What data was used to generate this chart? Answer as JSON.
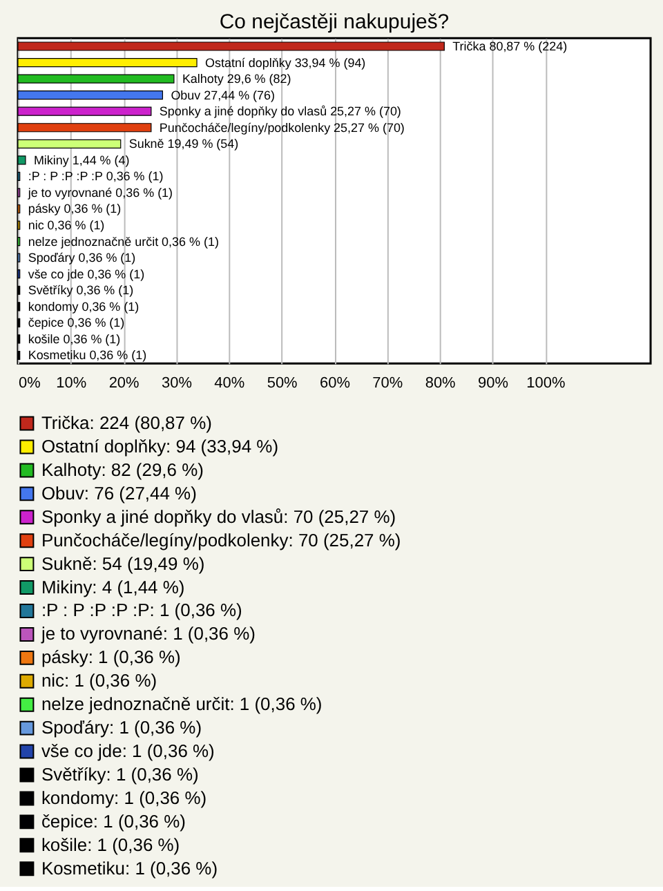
{
  "chart_data": {
    "type": "bar",
    "orientation": "horizontal",
    "title": "Co nejčastěji nakupuješ?",
    "categories": [
      "Trička",
      "Ostatní doplňky",
      "Kalhoty",
      "Obuv",
      "Sponky a jiné dopňky do vlasů",
      "Punčocháče/legíny/podkolenky",
      "Sukně",
      "Mikiny",
      ":P : P :P :P :P",
      "je to vyrovnané",
      "pásky",
      "nic",
      "nelze jednoznačně určit",
      "Spoďáry",
      "vše co jde",
      "Světříky",
      "kondomy",
      "čepice",
      "košile",
      "Kosmetiku"
    ],
    "series": [
      {
        "name": "Trička: 224 (80,87 %)",
        "color": "#c0281c",
        "values": [
          80.87,
          null,
          null,
          null,
          null,
          null,
          null,
          null,
          null,
          null,
          null,
          null,
          null,
          null,
          null,
          null,
          null,
          null,
          null,
          null
        ],
        "value_labels": [
          "80,87 % (224)",
          null,
          null,
          null,
          null,
          null,
          null,
          null,
          null,
          null,
          null,
          null,
          null,
          null,
          null,
          null,
          null,
          null,
          null,
          null
        ]
      },
      {
        "name": "Ostatní doplňky: 94 (33,94 %)",
        "color": "#ffee00",
        "values": [
          null,
          33.94,
          null,
          null,
          null,
          null,
          null,
          null,
          null,
          null,
          null,
          null,
          null,
          null,
          null,
          null,
          null,
          null,
          null,
          null
        ],
        "value_labels": [
          null,
          "33,94 % (94)",
          null,
          null,
          null,
          null,
          null,
          null,
          null,
          null,
          null,
          null,
          null,
          null,
          null,
          null,
          null,
          null,
          null,
          null
        ]
      },
      {
        "name": "Kalhoty: 82 (29,6 %)",
        "color": "#22bb22",
        "values": [
          null,
          null,
          29.6,
          null,
          null,
          null,
          null,
          null,
          null,
          null,
          null,
          null,
          null,
          null,
          null,
          null,
          null,
          null,
          null,
          null
        ],
        "value_labels": [
          null,
          null,
          "29,6 % (82)",
          null,
          null,
          null,
          null,
          null,
          null,
          null,
          null,
          null,
          null,
          null,
          null,
          null,
          null,
          null,
          null,
          null
        ]
      },
      {
        "name": "Obuv: 76 (27,44 %)",
        "color": "#4477ee",
        "values": [
          null,
          null,
          null,
          27.44,
          null,
          null,
          null,
          null,
          null,
          null,
          null,
          null,
          null,
          null,
          null,
          null,
          null,
          null,
          null,
          null
        ],
        "value_labels": [
          null,
          null,
          null,
          "27,44 % (76)",
          null,
          null,
          null,
          null,
          null,
          null,
          null,
          null,
          null,
          null,
          null,
          null,
          null,
          null,
          null,
          null
        ]
      },
      {
        "name": "Sponky a jiné dopňky do vlasů: 70 (25,27 %)",
        "color": "#cc22cc",
        "values": [
          null,
          null,
          null,
          null,
          25.27,
          null,
          null,
          null,
          null,
          null,
          null,
          null,
          null,
          null,
          null,
          null,
          null,
          null,
          null,
          null
        ],
        "value_labels": [
          null,
          null,
          null,
          null,
          "25,27 % (70)",
          null,
          null,
          null,
          null,
          null,
          null,
          null,
          null,
          null,
          null,
          null,
          null,
          null,
          null,
          null
        ]
      },
      {
        "name": "Punčocháče/legíny/podkolenky: 70 (25,27 %)",
        "color": "#e04010",
        "values": [
          null,
          null,
          null,
          null,
          null,
          25.27,
          null,
          null,
          null,
          null,
          null,
          null,
          null,
          null,
          null,
          null,
          null,
          null,
          null,
          null
        ],
        "value_labels": [
          null,
          null,
          null,
          null,
          null,
          "25,27 % (70)",
          null,
          null,
          null,
          null,
          null,
          null,
          null,
          null,
          null,
          null,
          null,
          null,
          null,
          null
        ]
      },
      {
        "name": "Sukně: 54 (19,49 %)",
        "color": "#ccff77",
        "values": [
          null,
          null,
          null,
          null,
          null,
          null,
          19.49,
          null,
          null,
          null,
          null,
          null,
          null,
          null,
          null,
          null,
          null,
          null,
          null,
          null
        ],
        "value_labels": [
          null,
          null,
          null,
          null,
          null,
          null,
          "19,49 % (54)",
          null,
          null,
          null,
          null,
          null,
          null,
          null,
          null,
          null,
          null,
          null,
          null,
          null
        ]
      },
      {
        "name": "Mikiny: 4 (1,44 %)",
        "color": "#119966",
        "values": [
          null,
          null,
          null,
          null,
          null,
          null,
          null,
          1.44,
          null,
          null,
          null,
          null,
          null,
          null,
          null,
          null,
          null,
          null,
          null,
          null
        ],
        "value_labels": [
          null,
          null,
          null,
          null,
          null,
          null,
          null,
          "1,44 % (4)",
          null,
          null,
          null,
          null,
          null,
          null,
          null,
          null,
          null,
          null,
          null,
          null
        ]
      },
      {
        "name": ":P : P :P :P :P: 1 (0,36 %)",
        "color": "#227799",
        "values": [
          null,
          null,
          null,
          null,
          null,
          null,
          null,
          null,
          0.36,
          null,
          null,
          null,
          null,
          null,
          null,
          null,
          null,
          null,
          null,
          null
        ],
        "value_labels": [
          null,
          null,
          null,
          null,
          null,
          null,
          null,
          null,
          "0,36 % (1)",
          null,
          null,
          null,
          null,
          null,
          null,
          null,
          null,
          null,
          null,
          null
        ]
      },
      {
        "name": "je to vyrovnané: 1 (0,36 %)",
        "color": "#bb55bb",
        "values": [
          null,
          null,
          null,
          null,
          null,
          null,
          null,
          null,
          null,
          0.36,
          null,
          null,
          null,
          null,
          null,
          null,
          null,
          null,
          null,
          null
        ],
        "value_labels": [
          null,
          null,
          null,
          null,
          null,
          null,
          null,
          null,
          null,
          "0,36 % (1)",
          null,
          null,
          null,
          null,
          null,
          null,
          null,
          null,
          null,
          null
        ]
      },
      {
        "name": "pásky: 1 (0,36 %)",
        "color": "#ee7711",
        "values": [
          null,
          null,
          null,
          null,
          null,
          null,
          null,
          null,
          null,
          null,
          0.36,
          null,
          null,
          null,
          null,
          null,
          null,
          null,
          null,
          null
        ],
        "value_labels": [
          null,
          null,
          null,
          null,
          null,
          null,
          null,
          null,
          null,
          null,
          "0,36 % (1)",
          null,
          null,
          null,
          null,
          null,
          null,
          null,
          null,
          null
        ]
      },
      {
        "name": "nic: 1 (0,36 %)",
        "color": "#ddaa00",
        "values": [
          null,
          null,
          null,
          null,
          null,
          null,
          null,
          null,
          null,
          null,
          null,
          0.36,
          null,
          null,
          null,
          null,
          null,
          null,
          null,
          null
        ],
        "value_labels": [
          null,
          null,
          null,
          null,
          null,
          null,
          null,
          null,
          null,
          null,
          null,
          "0,36 % (1)",
          null,
          null,
          null,
          null,
          null,
          null,
          null,
          null
        ]
      },
      {
        "name": "nelze jednoznačně určit: 1 (0,36 %)",
        "color": "#44ee44",
        "values": [
          null,
          null,
          null,
          null,
          null,
          null,
          null,
          null,
          null,
          null,
          null,
          null,
          0.36,
          null,
          null,
          null,
          null,
          null,
          null,
          null
        ],
        "value_labels": [
          null,
          null,
          null,
          null,
          null,
          null,
          null,
          null,
          null,
          null,
          null,
          null,
          "0,36 % (1)",
          null,
          null,
          null,
          null,
          null,
          null,
          null
        ]
      },
      {
        "name": "Spoďáry: 1 (0,36 %)",
        "color": "#6699dd",
        "values": [
          null,
          null,
          null,
          null,
          null,
          null,
          null,
          null,
          null,
          null,
          null,
          null,
          null,
          0.36,
          null,
          null,
          null,
          null,
          null,
          null
        ],
        "value_labels": [
          null,
          null,
          null,
          null,
          null,
          null,
          null,
          null,
          null,
          null,
          null,
          null,
          null,
          "0,36 % (1)",
          null,
          null,
          null,
          null,
          null,
          null
        ]
      },
      {
        "name": "vše co jde: 1 (0,36 %)",
        "color": "#2244aa",
        "values": [
          null,
          null,
          null,
          null,
          null,
          null,
          null,
          null,
          null,
          null,
          null,
          null,
          null,
          null,
          0.36,
          null,
          null,
          null,
          null,
          null
        ],
        "value_labels": [
          null,
          null,
          null,
          null,
          null,
          null,
          null,
          null,
          null,
          null,
          null,
          null,
          null,
          null,
          "0,36 % (1)",
          null,
          null,
          null,
          null,
          null
        ]
      },
      {
        "name": "Světříky: 1 (0,36 %)",
        "color": "#000000",
        "values": [
          null,
          null,
          null,
          null,
          null,
          null,
          null,
          null,
          null,
          null,
          null,
          null,
          null,
          null,
          null,
          0.36,
          null,
          null,
          null,
          null
        ],
        "value_labels": [
          null,
          null,
          null,
          null,
          null,
          null,
          null,
          null,
          null,
          null,
          null,
          null,
          null,
          null,
          null,
          "0,36 % (1)",
          null,
          null,
          null,
          null
        ]
      },
      {
        "name": "kondomy: 1 (0,36 %)",
        "color": "#000001",
        "values": [
          null,
          null,
          null,
          null,
          null,
          null,
          null,
          null,
          null,
          null,
          null,
          null,
          null,
          null,
          null,
          null,
          0.36,
          null,
          null,
          null
        ],
        "value_labels": [
          null,
          null,
          null,
          null,
          null,
          null,
          null,
          null,
          null,
          null,
          null,
          null,
          null,
          null,
          null,
          null,
          "0,36 % (1)",
          null,
          null,
          null
        ]
      },
      {
        "name": "čepice: 1 (0,36 %)",
        "color": "#000002",
        "values": [
          null,
          null,
          null,
          null,
          null,
          null,
          null,
          null,
          null,
          null,
          null,
          null,
          null,
          null,
          null,
          null,
          null,
          0.36,
          null,
          null
        ],
        "value_labels": [
          null,
          null,
          null,
          null,
          null,
          null,
          null,
          null,
          null,
          null,
          null,
          null,
          null,
          null,
          null,
          null,
          null,
          "0,36 % (1)",
          null,
          null
        ]
      },
      {
        "name": "košile: 1 (0,36 %)",
        "color": "#010101",
        "values": [
          null,
          null,
          null,
          null,
          null,
          null,
          null,
          null,
          null,
          null,
          null,
          null,
          null,
          null,
          null,
          null,
          null,
          null,
          0.36,
          null
        ],
        "value_labels": [
          null,
          null,
          null,
          null,
          null,
          null,
          null,
          null,
          null,
          null,
          null,
          null,
          null,
          null,
          null,
          null,
          null,
          null,
          "0,36 % (1)",
          null
        ]
      },
      {
        "name": "Kosmetiku: 1 (0,36 %)",
        "color": "#020202",
        "values": [
          null,
          null,
          null,
          null,
          null,
          null,
          null,
          null,
          null,
          null,
          null,
          null,
          null,
          null,
          null,
          null,
          null,
          null,
          null,
          0.36
        ],
        "value_labels": [
          null,
          null,
          null,
          null,
          null,
          null,
          null,
          null,
          null,
          null,
          null,
          null,
          null,
          null,
          null,
          null,
          null,
          null,
          null,
          "0,36 % (1)"
        ]
      }
    ],
    "xlim": [
      0,
      120
    ],
    "xticks": [
      {
        "value": 0,
        "label": "0%"
      },
      {
        "value": 10,
        "label": "10%"
      },
      {
        "value": 20,
        "label": "20%"
      },
      {
        "value": 30,
        "label": "30%"
      },
      {
        "value": 40,
        "label": "40%"
      },
      {
        "value": 50,
        "label": "50%"
      },
      {
        "value": 60,
        "label": "60%"
      },
      {
        "value": 70,
        "label": "70%"
      },
      {
        "value": 80,
        "label": "80%"
      },
      {
        "value": 90,
        "label": "90%"
      },
      {
        "value": 100,
        "label": "100%"
      }
    ],
    "grid": "x",
    "legend": "bottom",
    "tick_labels": "x"
  }
}
